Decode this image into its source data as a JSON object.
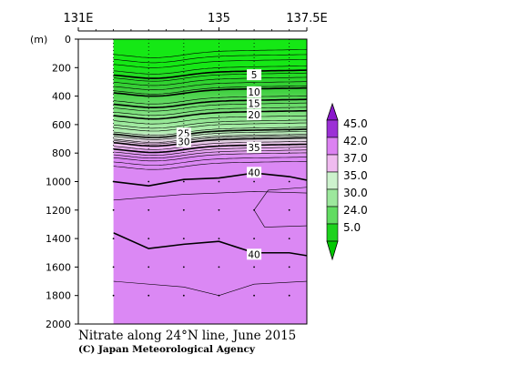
{
  "chart_data": {
    "type": "heatmap",
    "title": "Nitrate along 24°N line, June 2015",
    "credit": "(C) Japan Meteorological Agency",
    "x_axis": {
      "ticks": [
        "131E",
        "135",
        "137.5E"
      ],
      "range_lon": [
        131.0,
        137.5
      ],
      "station_lons": [
        132.0,
        133.0,
        134.0,
        135.0,
        136.0,
        137.0
      ]
    },
    "y_axis": {
      "unit": "(m)",
      "ticks": [
        "0",
        "200",
        "400",
        "600",
        "800",
        "1000",
        "1200",
        "1400",
        "1600",
        "1800",
        "2000"
      ],
      "range_depth_m": [
        0,
        2000
      ],
      "inverted": true
    },
    "data_extent_lon": [
      132.0,
      137.5
    ],
    "contour_levels": [
      0,
      5,
      10,
      15,
      20,
      25,
      30,
      35,
      40
    ],
    "bold_levels": [
      5,
      10,
      15,
      20,
      25,
      30,
      35,
      40
    ],
    "contour_labels": [
      {
        "text": "5",
        "lon": 136.0,
        "depth": 250
      },
      {
        "text": "10",
        "lon": 136.0,
        "depth": 370
      },
      {
        "text": "15",
        "lon": 136.0,
        "depth": 450
      },
      {
        "text": "20",
        "lon": 136.0,
        "depth": 530
      },
      {
        "text": "25",
        "lon": 134.0,
        "depth": 660
      },
      {
        "text": "30",
        "lon": 134.0,
        "depth": 720
      },
      {
        "text": "35",
        "lon": 136.0,
        "depth": 760
      },
      {
        "text": "40",
        "lon": 136.0,
        "depth": 935
      },
      {
        "text": "40",
        "lon": 136.0,
        "depth": 1510
      }
    ],
    "colorbar": {
      "labels": [
        "45.0",
        "42.0",
        "37.0",
        "35.0",
        "30.0",
        "24.0",
        "5.0"
      ],
      "colors": [
        "#9c30d6",
        "#dc82f2",
        "#f0bbf0",
        "#cdf2cd",
        "#9de89d",
        "#62dc62",
        "#1ed21e"
      ],
      "upper_triangle_color": "#8a18cc",
      "lower_triangle_color": "#00c800"
    },
    "fill_colors": {
      "surface": "#15e815",
      "green_dark": "#38cd38",
      "green_light": "#b3efb3",
      "pink": "#f1c3f1",
      "purple": "#db88f4"
    },
    "grid": "dotted"
  }
}
